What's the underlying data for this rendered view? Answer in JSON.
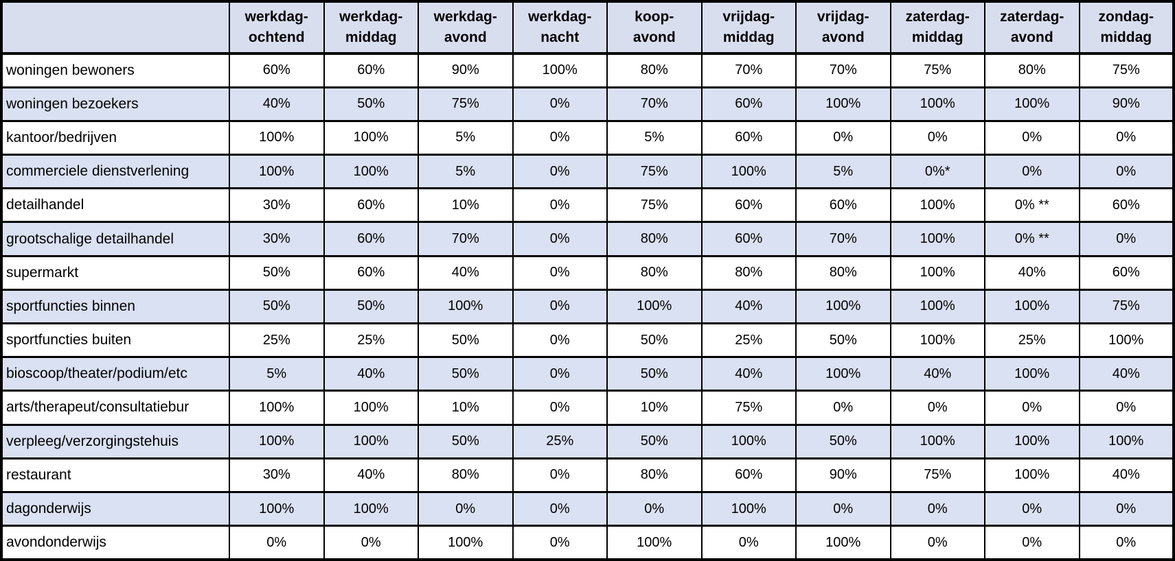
{
  "table": {
    "corner": "",
    "headers": [
      [
        "werkdag-",
        "ochtend"
      ],
      [
        "werkdag-",
        "middag"
      ],
      [
        "werkdag-",
        "avond"
      ],
      [
        "werkdag-",
        "nacht"
      ],
      [
        "koop-",
        "avond"
      ],
      [
        "vrijdag-",
        "middag"
      ],
      [
        "vrijdag-",
        "avond"
      ],
      [
        "zaterdag-",
        "middag"
      ],
      [
        "zaterdag-",
        "avond"
      ],
      [
        "zondag-",
        "middag"
      ]
    ],
    "rows": [
      {
        "label": "woningen bewoners",
        "values": [
          "60%",
          "60%",
          "90%",
          "100%",
          "80%",
          "70%",
          "70%",
          "75%",
          "80%",
          "75%"
        ]
      },
      {
        "label": "woningen bezoekers",
        "values": [
          "40%",
          "50%",
          "75%",
          "0%",
          "70%",
          "60%",
          "100%",
          "100%",
          "100%",
          "90%"
        ]
      },
      {
        "label": "kantoor/bedrijven",
        "values": [
          "100%",
          "100%",
          "5%",
          "0%",
          "5%",
          "60%",
          "0%",
          "0%",
          "0%",
          "0%"
        ]
      },
      {
        "label": "commerciele dienstverlening",
        "values": [
          "100%",
          "100%",
          "5%",
          "0%",
          "75%",
          "100%",
          "5%",
          "0%*",
          "0%",
          "0%"
        ]
      },
      {
        "label": "detailhandel",
        "values": [
          "30%",
          "60%",
          "10%",
          "0%",
          "75%",
          "60%",
          "60%",
          "100%",
          "0% **",
          "60%"
        ]
      },
      {
        "label": "grootschalige detailhandel",
        "values": [
          "30%",
          "60%",
          "70%",
          "0%",
          "80%",
          "60%",
          "70%",
          "100%",
          "0% **",
          "0%"
        ]
      },
      {
        "label": "supermarkt",
        "values": [
          "50%",
          "60%",
          "40%",
          "0%",
          "80%",
          "80%",
          "80%",
          "100%",
          "40%",
          "60%"
        ]
      },
      {
        "label": "sportfuncties binnen",
        "values": [
          "50%",
          "50%",
          "100%",
          "0%",
          "100%",
          "40%",
          "100%",
          "100%",
          "100%",
          "75%"
        ]
      },
      {
        "label": "sportfuncties buiten",
        "values": [
          "25%",
          "25%",
          "50%",
          "0%",
          "50%",
          "25%",
          "50%",
          "100%",
          "25%",
          "100%"
        ]
      },
      {
        "label": "bioscoop/theater/podium/etc",
        "values": [
          "5%",
          "40%",
          "50%",
          "0%",
          "50%",
          "40%",
          "100%",
          "40%",
          "100%",
          "40%"
        ]
      },
      {
        "label": "arts/therapeut/consultatiebur",
        "values": [
          "100%",
          "100%",
          "10%",
          "0%",
          "10%",
          "75%",
          "0%",
          "0%",
          "0%",
          "0%"
        ]
      },
      {
        "label": "verpleeg/verzorgingstehuis",
        "values": [
          "100%",
          "100%",
          "50%",
          "25%",
          "50%",
          "100%",
          "50%",
          "100%",
          "100%",
          "100%"
        ]
      },
      {
        "label": "restaurant",
        "values": [
          "30%",
          "40%",
          "80%",
          "0%",
          "80%",
          "60%",
          "90%",
          "75%",
          "100%",
          "40%"
        ]
      },
      {
        "label": "dagonderwijs",
        "values": [
          "100%",
          "100%",
          "0%",
          "0%",
          "0%",
          "100%",
          "0%",
          "0%",
          "0%",
          "0%"
        ]
      },
      {
        "label": "avondonderwijs",
        "values": [
          "0%",
          "0%",
          "100%",
          "0%",
          "100%",
          "0%",
          "100%",
          "0%",
          "0%",
          "0%"
        ]
      }
    ]
  },
  "colors": {
    "header_bg": "#D9DEEF",
    "row_alt_bg": "#DAE1F2",
    "row_bg": "#FFFFFF",
    "border": "#000000",
    "text": "#000000"
  }
}
